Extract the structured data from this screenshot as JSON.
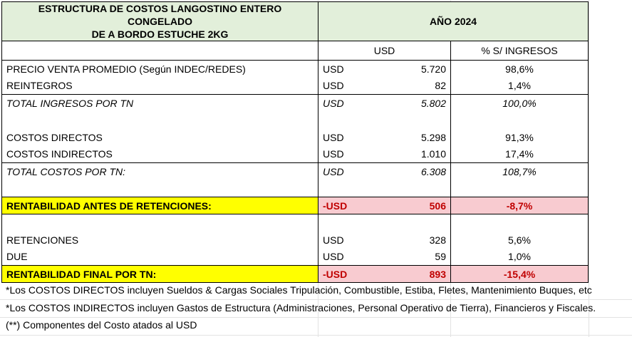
{
  "header": {
    "title_line1": "ESTRUCTURA DE COSTOS LANGOSTINO ENTERO CONGELADO",
    "title_line2": "DE A BORDO ESTUCHE 2KG",
    "year": "AÑO 2024",
    "col_usd": "USD",
    "col_pct": "% S/ INGRESOS"
  },
  "rows": {
    "precio": {
      "label": "PRECIO VENTA PROMEDIO (Según INDEC/REDES)",
      "cur": "USD",
      "value": "5.720",
      "pct": "98,6%"
    },
    "reintegros": {
      "label": "REINTEGROS",
      "cur": "USD",
      "value": "82",
      "pct": "1,4%"
    },
    "total_ingresos": {
      "label": "TOTAL INGRESOS POR TN",
      "cur": "USD",
      "value": "5.802",
      "pct": "100,0%"
    },
    "costos_directos": {
      "label": "COSTOS DIRECTOS",
      "cur": "USD",
      "value": "5.298",
      "pct": "91,3%"
    },
    "costos_indirectos": {
      "label": "COSTOS INDIRECTOS",
      "cur": "USD",
      "value": "1.010",
      "pct": "17,4%"
    },
    "total_costos": {
      "label": "TOTAL COSTOS POR TN:",
      "cur": "USD",
      "value": "6.308",
      "pct": "108,7%"
    },
    "rentabilidad_antes": {
      "label": "RENTABILIDAD ANTES DE RETENCIONES:",
      "cur": "-USD",
      "value": "506",
      "pct": "-8,7%"
    },
    "retenciones": {
      "label": "RETENCIONES",
      "cur": "USD",
      "value": "328",
      "pct": "5,6%"
    },
    "due": {
      "label": "DUE",
      "cur": "USD",
      "value": "59",
      "pct": "1,0%"
    },
    "rentabilidad_final": {
      "label": "RENTABILIDAD FINAL POR TN:",
      "cur": "-USD",
      "value": "893",
      "pct": "-15,4%"
    }
  },
  "notes": {
    "n1": "*Los COSTOS DIRECTOS incluyen Sueldos & Cargas Sociales Tripulación, Combustible, Estiba, Fletes, Mantenimiento Buques, etc",
    "n2": "*Los COSTOS INDIRECTOS incluyen Gastos de Estructura (Administraciones, Personal Operativo de Tierra), Financieros y Fiscales.",
    "n3": "(**) Componentes del Costo atados al USD"
  },
  "colors": {
    "header_bg": "#e2efda",
    "highlight_yellow": "#ffff00",
    "highlight_pink": "#f8cbd0",
    "negative_text": "#c00000"
  }
}
